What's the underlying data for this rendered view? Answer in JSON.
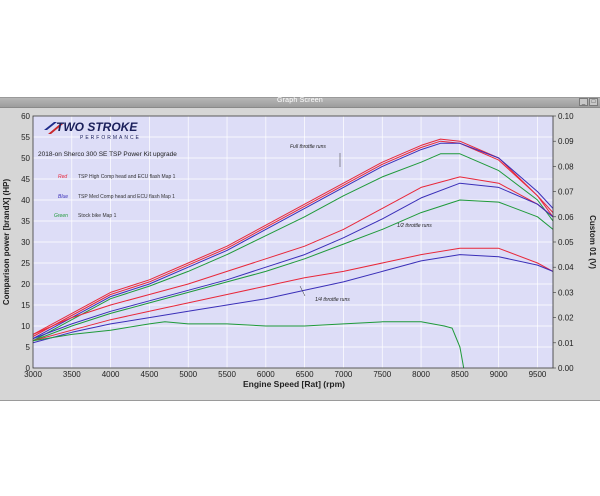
{
  "window": {
    "title": "Graph Screen"
  },
  "logo": {
    "brand": "TWO STROKE",
    "sub": "PERFORMANCE"
  },
  "chart_data": {
    "type": "line",
    "title": "2018-on Sherco 300 SE TSP Power Kit upgrade",
    "xlabel": "Engine Speed [Rat] (rpm)",
    "ylabel": "Comparison power [brandX] (HP)",
    "y2label": "Custom 01 (V)",
    "xlim": [
      3000,
      9700
    ],
    "ylim": [
      0,
      60
    ],
    "y2lim": [
      0,
      0.1
    ],
    "xticks": [
      "3000",
      "3500",
      "4000",
      "4500",
      "5000",
      "5500",
      "6000",
      "6500",
      "7000",
      "7500",
      "8000",
      "8500",
      "9000",
      "9500"
    ],
    "yticks": [
      "0",
      "5",
      "10",
      "15",
      "20",
      "25",
      "30",
      "35",
      "40",
      "45",
      "50",
      "55",
      "60"
    ],
    "y2ticks": [
      "0.00",
      "0.01",
      "0.02",
      "0.03",
      "0.04",
      "0.05",
      "0.06",
      "0.07",
      "0.08",
      "0.09",
      "0.10"
    ],
    "grid": true,
    "legend": [
      {
        "key": "Red",
        "label": "TSP High Comp head and ECU flash Map 1",
        "color": "#e8283a"
      },
      {
        "key": "Blue",
        "label": "TSP Med Comp head and ECU flash Map 1",
        "color": "#3a2fb8"
      },
      {
        "key": "Green",
        "label": "Stock bike Map 1",
        "color": "#1f9a3a"
      }
    ],
    "annotations": [
      "Full throttle runs",
      "1/2 throttle runs",
      "1/4 throttle runs"
    ],
    "series": [
      {
        "group": "Full throttle runs",
        "legend": "Red",
        "color": "#e8283a",
        "x": [
          3000,
          3500,
          4000,
          4500,
          5000,
          5500,
          6000,
          6500,
          7000,
          7500,
          8000,
          8250,
          8500,
          9000,
          9500,
          9700
        ],
        "y": [
          8,
          13,
          18,
          21,
          25,
          29,
          34,
          39,
          44,
          49,
          53,
          54.5,
          54,
          50,
          41,
          37
        ]
      },
      {
        "group": "Full throttle runs",
        "legend": "Red",
        "color": "#e8283a",
        "x": [
          3000,
          3500,
          4000,
          4500,
          5000,
          5500,
          6000,
          6500,
          7000,
          7500,
          8000,
          8250,
          8500,
          9000,
          9500,
          9700
        ],
        "y": [
          7.5,
          12.5,
          17.5,
          20.5,
          24.5,
          28.5,
          33.5,
          38.5,
          43.5,
          48.5,
          52.5,
          54,
          53.5,
          49.5,
          41,
          36
        ]
      },
      {
        "group": "Full throttle runs",
        "legend": "Blue",
        "color": "#3a2fb8",
        "x": [
          3000,
          3500,
          4000,
          4500,
          5000,
          5500,
          6000,
          6500,
          7000,
          7500,
          8000,
          8250,
          8500,
          9000,
          9500,
          9700
        ],
        "y": [
          7,
          12,
          17,
          20,
          24,
          28,
          33,
          38,
          43,
          48,
          52,
          53.5,
          53.5,
          50,
          42,
          38
        ]
      },
      {
        "group": "Full throttle runs",
        "legend": "Green",
        "color": "#1f9a3a",
        "x": [
          3000,
          3500,
          4000,
          4500,
          5000,
          5500,
          6000,
          6500,
          7000,
          7500,
          8000,
          8250,
          8500,
          9000,
          9500,
          9700
        ],
        "y": [
          6.5,
          11.5,
          16.5,
          19.5,
          23,
          27,
          31.5,
          36,
          41,
          45.5,
          49,
          51,
          51,
          47,
          40,
          35
        ]
      },
      {
        "group": "1/2 throttle runs",
        "legend": "Red",
        "color": "#e8283a",
        "x": [
          3000,
          3500,
          4000,
          4500,
          5000,
          5500,
          6000,
          6500,
          7000,
          7500,
          8000,
          8500,
          9000,
          9500,
          9700
        ],
        "y": [
          8,
          12,
          15,
          17.5,
          20,
          23,
          26,
          29,
          33,
          38,
          43,
          45.5,
          44,
          39,
          36
        ]
      },
      {
        "group": "1/2 throttle runs",
        "legend": "Blue",
        "color": "#3a2fb8",
        "x": [
          3000,
          3500,
          4000,
          4500,
          5000,
          5500,
          6000,
          6500,
          7000,
          7500,
          8000,
          8500,
          9000,
          9500,
          9700
        ],
        "y": [
          7,
          10.5,
          13.5,
          16,
          18.5,
          21,
          24,
          27,
          31,
          35.5,
          40.5,
          44,
          43,
          39,
          36
        ]
      },
      {
        "group": "1/2 throttle runs",
        "legend": "Green",
        "color": "#1f9a3a",
        "x": [
          3000,
          3500,
          4000,
          4500,
          5000,
          5500,
          6000,
          6500,
          7000,
          7500,
          8000,
          8500,
          9000,
          9500,
          9700
        ],
        "y": [
          6.5,
          10,
          13,
          15.5,
          18,
          20.5,
          23,
          26,
          29.5,
          33,
          37,
          40,
          39.5,
          36,
          33
        ]
      },
      {
        "group": "1/4 throttle runs",
        "legend": "Red",
        "color": "#e8283a",
        "x": [
          3000,
          3500,
          4000,
          4500,
          5000,
          5500,
          6000,
          6500,
          7000,
          7500,
          8000,
          8500,
          9000,
          9500,
          9700
        ],
        "y": [
          6.5,
          9,
          11.5,
          13.5,
          15.5,
          17.5,
          19.5,
          21.5,
          23,
          25,
          27,
          28.5,
          28.5,
          25,
          23
        ]
      },
      {
        "group": "1/4 throttle runs",
        "legend": "Blue",
        "color": "#3a2fb8",
        "x": [
          3000,
          3500,
          4000,
          4500,
          5000,
          5500,
          6000,
          6500,
          7000,
          7500,
          8000,
          8500,
          9000,
          9500,
          9700
        ],
        "y": [
          6,
          8.5,
          10.5,
          12,
          13.5,
          15,
          16.5,
          18.5,
          20.5,
          23,
          25.5,
          27,
          26.5,
          24.5,
          23
        ]
      },
      {
        "group": "1/4 throttle runs",
        "legend": "Green",
        "color": "#1f9a3a",
        "x": [
          3000,
          3500,
          4000,
          4500,
          4700,
          5000,
          5500,
          6000,
          6500,
          7000,
          7500,
          8000,
          8300,
          8400,
          8500,
          8550
        ],
        "y": [
          6.5,
          8,
          9,
          10.5,
          11,
          10.5,
          10.5,
          10,
          10,
          10.5,
          11,
          11,
          10,
          9.5,
          5,
          0
        ]
      }
    ]
  }
}
